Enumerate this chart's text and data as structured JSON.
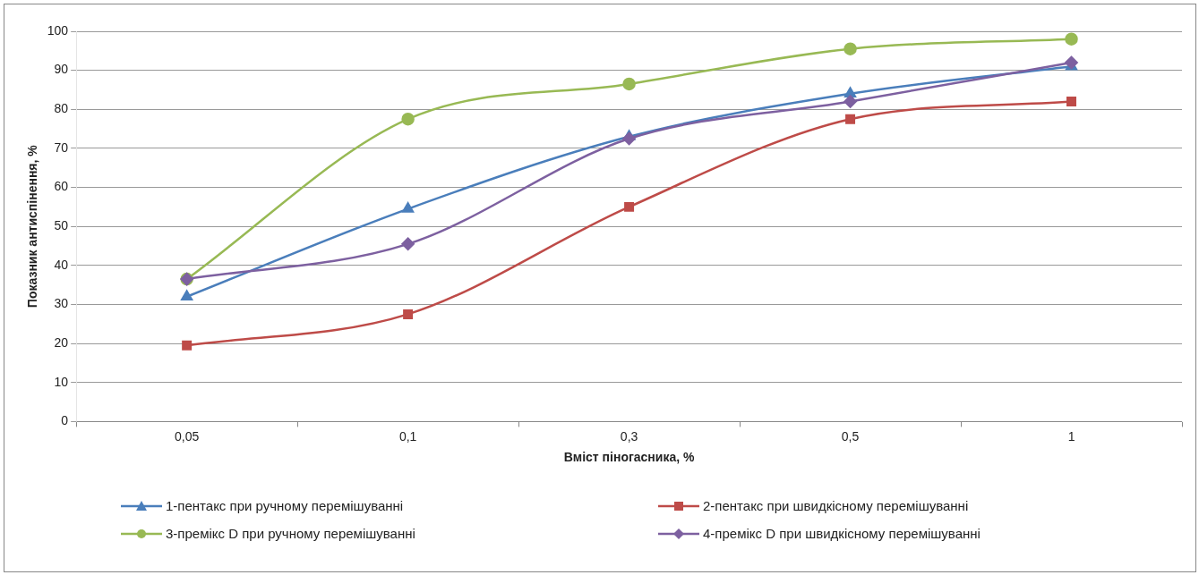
{
  "chart_data": {
    "type": "line",
    "xlabel": "Вміст піногасника, %",
    "ylabel": "Показник антиспінення, %",
    "categories": [
      "0,05",
      "0,1",
      "0,3",
      "0,5",
      "1"
    ],
    "series": [
      {
        "name": "1-пентакс при ручному перемішуванні",
        "color": "#4a7ebb",
        "marker": "triangle",
        "values": [
          32,
          54.5,
          73,
          84,
          91
        ]
      },
      {
        "name": "2-пентакс при швидкісному перемішуванні",
        "color": "#be4b48",
        "marker": "square",
        "values": [
          19.5,
          27.5,
          55,
          77.5,
          82
        ]
      },
      {
        "name": "3-премікс D при ручному перемішуванні",
        "color": "#98b954",
        "marker": "circle",
        "values": [
          36.5,
          77.5,
          86.5,
          95.5,
          98
        ]
      },
      {
        "name": "4-премікс D при швидкісному перемішуванні",
        "color": "#7d60a0",
        "marker": "diamond",
        "values": [
          36.5,
          45.5,
          72.5,
          82,
          92
        ]
      }
    ],
    "ylim": [
      0,
      100
    ],
    "yticks": [
      0,
      10,
      20,
      30,
      40,
      50,
      60,
      70,
      80,
      90,
      100
    ],
    "grid": "y",
    "legend": "bottom",
    "line_style": "solid"
  }
}
